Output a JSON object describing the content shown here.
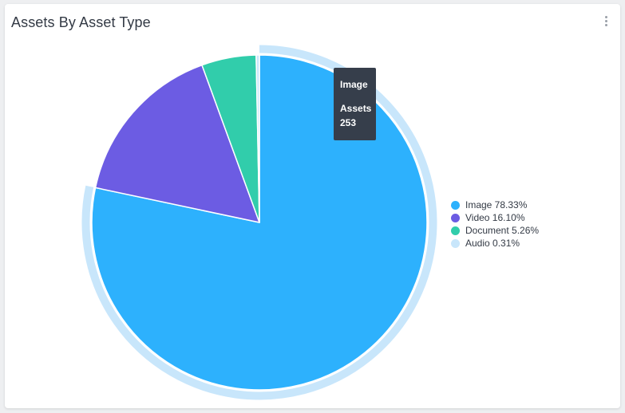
{
  "widget": {
    "title": "Assets By Asset Type",
    "menu_icon": "vertical-ellipsis-icon"
  },
  "tooltip": {
    "title": "Image",
    "label": "Assets",
    "value": "253"
  },
  "chart_data": {
    "type": "pie",
    "title": "Assets By Asset Type",
    "legend_position": "right",
    "slices": [
      {
        "name": "Image",
        "percent": 78.33,
        "count": 253,
        "color": "#2db1fd",
        "legend": "Image 78.33%"
      },
      {
        "name": "Video",
        "percent": 16.1,
        "color": "#6c5ce3",
        "legend": "Video 16.10%"
      },
      {
        "name": "Document",
        "percent": 5.26,
        "color": "#31cdab",
        "legend": "Document 5.26%"
      },
      {
        "name": "Audio",
        "percent": 0.31,
        "color": "#c8e6fb",
        "legend": "Audio 0.31%"
      }
    ],
    "highlighted": "Image"
  }
}
